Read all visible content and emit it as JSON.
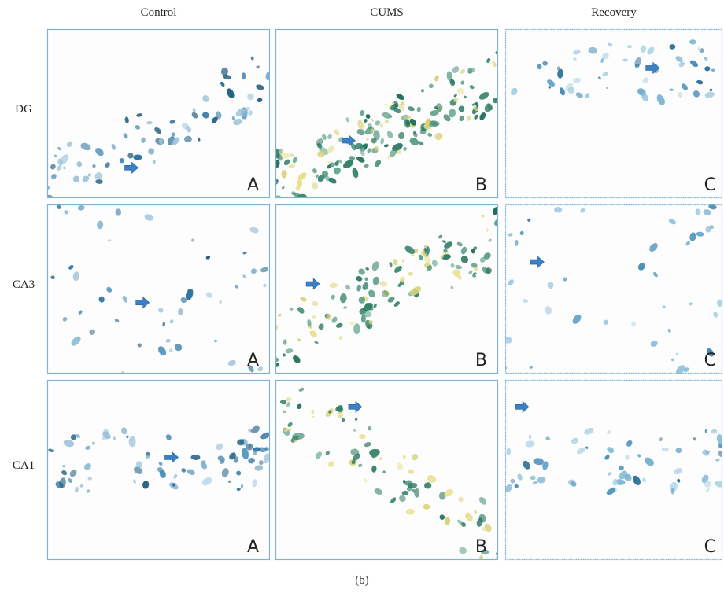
{
  "columns": [
    "Control",
    "CUMS",
    "Recovery"
  ],
  "rows": [
    {
      "label": "DG",
      "panels": [
        "A",
        "B",
        "C"
      ]
    },
    {
      "label": "CA3",
      "panels": [
        "A",
        "B",
        "C"
      ]
    },
    {
      "label": "CA1",
      "panels": [
        "A",
        "B",
        "C"
      ]
    }
  ],
  "caption": "(b)"
}
